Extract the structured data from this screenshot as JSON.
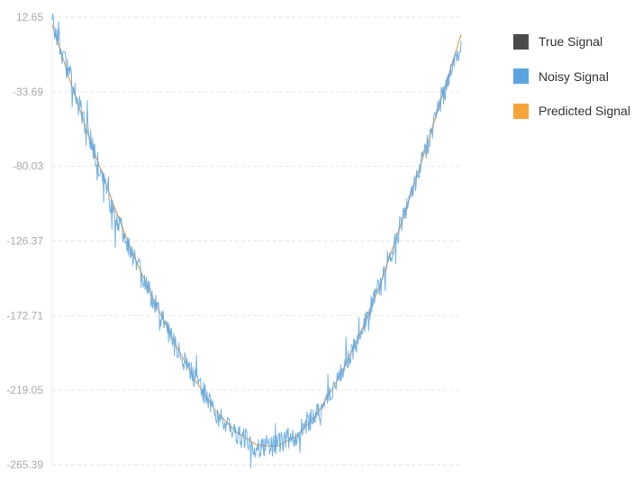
{
  "chart_data": {
    "type": "line",
    "title": "",
    "xlabel": "",
    "ylabel": "",
    "y_ticks": [
      "12.65",
      "-33.69",
      "-80.03",
      "-126.37",
      "-172.71",
      "-219.05",
      "-265.39"
    ],
    "ylim": [
      -265.39,
      12.65
    ],
    "xlim": [
      0,
      1
    ],
    "grid": true,
    "legend_position": "right",
    "series": [
      {
        "name": "True Signal",
        "color": "#4a4a4a",
        "x": [
          0,
          0.05,
          0.1,
          0.15,
          0.2,
          0.25,
          0.3,
          0.35,
          0.4,
          0.45,
          0.5,
          0.55,
          0.6,
          0.65,
          0.7,
          0.75,
          0.8,
          0.85,
          0.9,
          0.95,
          1.0
        ],
        "values": [
          8,
          -32,
          -69,
          -104,
          -136,
          -164,
          -190,
          -213,
          -232,
          -245,
          -253,
          -254,
          -247,
          -233,
          -212,
          -186,
          -155,
          -118,
          -80,
          -39,
          2
        ]
      },
      {
        "name": "Noisy Signal",
        "color": "#5aa5e0",
        "x": [
          0,
          0.05,
          0.1,
          0.15,
          0.2,
          0.25,
          0.3,
          0.35,
          0.4,
          0.45,
          0.5,
          0.55,
          0.6,
          0.65,
          0.7,
          0.75,
          0.8,
          0.85,
          0.9,
          0.95,
          1.0
        ],
        "values": [
          10,
          -30,
          -69,
          -108,
          -137,
          -165,
          -192,
          -212,
          -233,
          -246,
          -254,
          -253,
          -246,
          -232,
          -212,
          -186,
          -154,
          -118,
          -80,
          -40,
          -5
        ]
      },
      {
        "name": "Predicted Signal",
        "color": "#f5a33b",
        "x": [
          0,
          0.05,
          0.1,
          0.15,
          0.2,
          0.25,
          0.3,
          0.35,
          0.4,
          0.45,
          0.5,
          0.55,
          0.6,
          0.65,
          0.7,
          0.75,
          0.8,
          0.85,
          0.9,
          0.95,
          1.0
        ],
        "values": [
          8,
          -32,
          -69,
          -104,
          -136,
          -164,
          -190,
          -213,
          -232,
          -245,
          -253,
          -254,
          -247,
          -233,
          -212,
          -186,
          -155,
          -118,
          -80,
          -40,
          2
        ]
      }
    ]
  }
}
